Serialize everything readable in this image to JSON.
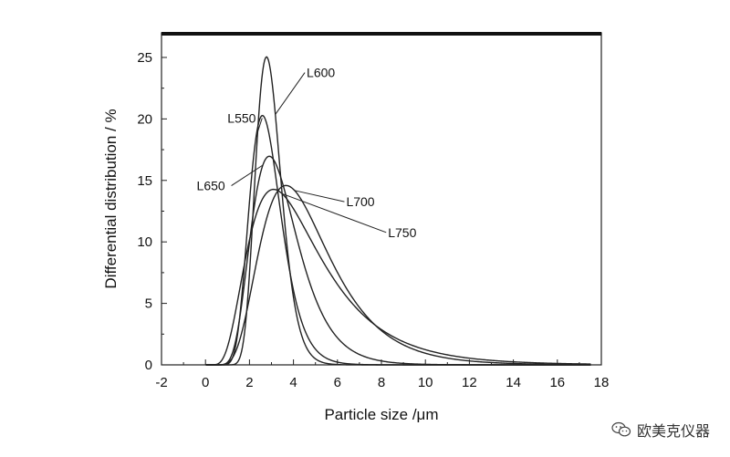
{
  "chart_data": {
    "type": "line",
    "xlabel": "Particle size /μm",
    "ylabel": "Differential distribution / %",
    "xlim": [
      -2,
      18
    ],
    "ylim": [
      0,
      27
    ],
    "xticks": [
      -2,
      0,
      2,
      4,
      6,
      8,
      10,
      12,
      14,
      16,
      18
    ],
    "yticks": [
      0,
      5,
      10,
      15,
      20,
      25
    ],
    "grid": false,
    "series": [
      {
        "name": "L550",
        "mode": 2.8,
        "peak": 19.5,
        "sigma": 0.28,
        "label_x": 1.0,
        "label_y": 19.7
      },
      {
        "name": "L600",
        "mode": 2.9,
        "peak": 24.5,
        "sigma": 0.21,
        "label_x": 4.6,
        "label_y": 23.4
      },
      {
        "name": "L650",
        "mode": 3.3,
        "peak": 15.9,
        "sigma": 0.36,
        "label_x": -0.4,
        "label_y": 14.2
      },
      {
        "name": "L700",
        "mode": 4.4,
        "peak": 13.3,
        "sigma": 0.43,
        "label_x": 6.4,
        "label_y": 12.9
      },
      {
        "name": "L750",
        "mode": 4.1,
        "peak": 12.4,
        "sigma": 0.53,
        "label_x": 8.3,
        "label_y": 10.4
      }
    ]
  },
  "watermark": {
    "text": "欧美克仪器",
    "icon": "wechat-icon"
  }
}
